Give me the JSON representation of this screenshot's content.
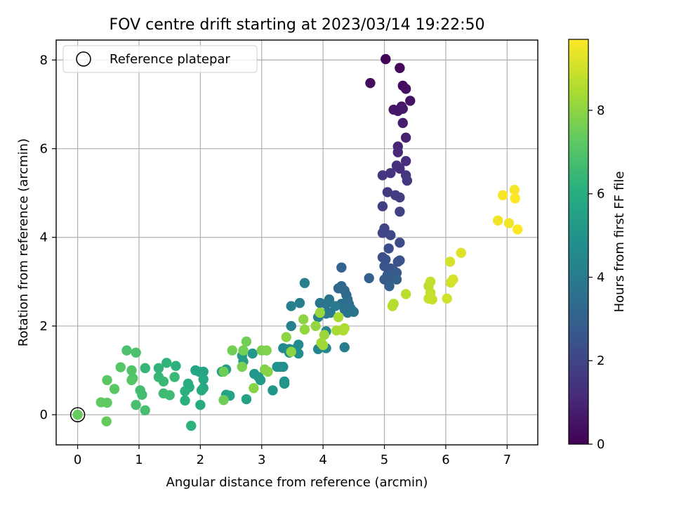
{
  "chart_data": {
    "type": "scatter",
    "title": "FOV centre drift starting at 2023/03/14 19:22:50",
    "xlabel": "Angular distance from reference (arcmin)",
    "ylabel": "Rotation from reference (arcmin)",
    "xlim": [
      -0.35,
      7.5
    ],
    "ylim": [
      -0.68,
      8.45
    ],
    "xticks": [
      0,
      1,
      2,
      3,
      4,
      5,
      6,
      7
    ],
    "yticks": [
      0,
      2,
      4,
      6,
      8
    ],
    "grid": true,
    "legend": {
      "placement": "top-left",
      "entries": [
        "Reference platepar"
      ]
    },
    "reference_point": {
      "x": 0,
      "y": 0,
      "label": "Reference platepar"
    },
    "colorbar": {
      "label": "Hours from first FF file",
      "colormap": "viridis",
      "range": [
        0,
        9.7
      ],
      "ticks": [
        0,
        2,
        4,
        6,
        8
      ]
    },
    "points": [
      [
        5.02,
        8.02,
        0.1
      ],
      [
        5.25,
        7.82,
        0.2
      ],
      [
        4.77,
        7.48,
        0.3
      ],
      [
        5.3,
        7.42,
        0.3
      ],
      [
        5.35,
        7.35,
        0.4
      ],
      [
        5.42,
        7.08,
        0.5
      ],
      [
        5.28,
        6.95,
        0.5
      ],
      [
        5.15,
        6.88,
        0.6
      ],
      [
        5.22,
        6.85,
        0.6
      ],
      [
        5.3,
        6.9,
        0.7
      ],
      [
        5.3,
        6.58,
        0.8
      ],
      [
        5.35,
        6.25,
        0.9
      ],
      [
        5.22,
        6.05,
        1.0
      ],
      [
        5.22,
        5.92,
        1.1
      ],
      [
        5.35,
        5.72,
        1.2
      ],
      [
        5.2,
        5.62,
        1.3
      ],
      [
        5.25,
        5.55,
        1.3
      ],
      [
        5.1,
        5.45,
        1.4
      ],
      [
        4.97,
        5.4,
        1.5
      ],
      [
        5.35,
        5.4,
        1.5
      ],
      [
        5.37,
        5.28,
        1.6
      ],
      [
        5.05,
        5.02,
        1.6
      ],
      [
        5.18,
        4.95,
        1.7
      ],
      [
        5.25,
        4.9,
        1.7
      ],
      [
        4.97,
        4.7,
        1.8
      ],
      [
        5.25,
        4.58,
        1.9
      ],
      [
        5.0,
        4.2,
        2.0
      ],
      [
        4.97,
        4.1,
        2.0
      ],
      [
        5.1,
        4.05,
        2.1
      ],
      [
        5.25,
        3.88,
        2.2
      ],
      [
        5.07,
        3.75,
        2.3
      ],
      [
        4.97,
        3.55,
        2.3
      ],
      [
        5.02,
        3.5,
        2.4
      ],
      [
        5.22,
        3.45,
        2.4
      ],
      [
        5.25,
        3.48,
        2.5
      ],
      [
        5.0,
        3.35,
        2.5
      ],
      [
        5.1,
        3.3,
        2.6
      ],
      [
        5.15,
        3.25,
        2.6
      ],
      [
        5.2,
        3.2,
        2.7
      ],
      [
        5.05,
        3.15,
        2.7
      ],
      [
        5.12,
        3.1,
        2.8
      ],
      [
        5.0,
        3.05,
        2.8
      ],
      [
        4.75,
        3.08,
        2.9
      ],
      [
        5.08,
        2.9,
        3.0
      ],
      [
        5.2,
        3.05,
        3.0
      ],
      [
        4.3,
        3.32,
        3.1
      ],
      [
        4.3,
        2.9,
        3.2
      ],
      [
        4.25,
        2.85,
        3.2
      ],
      [
        4.35,
        2.8,
        3.3
      ],
      [
        4.38,
        2.7,
        3.3
      ],
      [
        4.4,
        2.6,
        3.4
      ],
      [
        4.42,
        2.5,
        3.4
      ],
      [
        4.45,
        2.4,
        3.5
      ],
      [
        4.3,
        2.5,
        3.5
      ],
      [
        4.35,
        2.38,
        3.6
      ],
      [
        4.4,
        2.3,
        3.6
      ],
      [
        4.5,
        2.32,
        3.7
      ],
      [
        4.1,
        2.6,
        3.7
      ],
      [
        4.05,
        2.5,
        3.8
      ],
      [
        3.95,
        2.52,
        3.8
      ],
      [
        4.05,
        2.28,
        3.9
      ],
      [
        4.12,
        2.3,
        3.9
      ],
      [
        4.2,
        2.45,
        4.0
      ],
      [
        4.35,
        1.52,
        4.0
      ],
      [
        3.7,
        2.97,
        4.1
      ],
      [
        3.62,
        2.52,
        4.1
      ],
      [
        3.48,
        2.45,
        4.2
      ],
      [
        3.48,
        2.0,
        4.2
      ],
      [
        3.92,
        2.2,
        4.3
      ],
      [
        4.05,
        1.88,
        4.3
      ],
      [
        4.05,
        1.5,
        4.4
      ],
      [
        3.92,
        1.48,
        4.4
      ],
      [
        3.35,
        1.5,
        4.5
      ],
      [
        3.45,
        1.48,
        4.5
      ],
      [
        3.55,
        1.48,
        4.6
      ],
      [
        3.6,
        1.58,
        4.6
      ],
      [
        3.45,
        1.4,
        4.7
      ],
      [
        3.6,
        1.38,
        4.7
      ],
      [
        3.3,
        1.08,
        4.8
      ],
      [
        3.35,
        1.08,
        4.8
      ],
      [
        3.25,
        1.08,
        4.9
      ],
      [
        3.37,
        0.75,
        4.9
      ],
      [
        3.37,
        0.7,
        5.0
      ],
      [
        3.18,
        0.55,
        5.0
      ],
      [
        2.95,
        0.85,
        5.1
      ],
      [
        2.88,
        0.92,
        5.1
      ],
      [
        2.98,
        0.78,
        5.2
      ],
      [
        2.85,
        1.38,
        5.2
      ],
      [
        2.68,
        1.33,
        5.3
      ],
      [
        2.7,
        1.2,
        5.3
      ],
      [
        2.42,
        1.02,
        5.4
      ],
      [
        2.35,
        0.97,
        5.4
      ],
      [
        2.75,
        0.35,
        5.5
      ],
      [
        2.42,
        0.45,
        5.5
      ],
      [
        2.48,
        0.43,
        5.6
      ],
      [
        2.05,
        0.97,
        5.6
      ],
      [
        1.98,
        0.97,
        5.7
      ],
      [
        1.92,
        1.0,
        5.7
      ],
      [
        2.05,
        0.8,
        5.8
      ],
      [
        2.05,
        0.6,
        5.8
      ],
      [
        2.02,
        0.55,
        5.9
      ],
      [
        2.0,
        0.22,
        5.9
      ],
      [
        1.8,
        0.7,
        6.0
      ],
      [
        1.82,
        0.62,
        6.0
      ],
      [
        1.75,
        0.53,
        6.1
      ],
      [
        1.75,
        0.32,
        6.1
      ],
      [
        1.85,
        -0.25,
        6.2
      ],
      [
        1.6,
        1.1,
        6.2
      ],
      [
        1.45,
        1.17,
        6.3
      ],
      [
        1.32,
        1.05,
        6.3
      ],
      [
        1.1,
        1.05,
        6.4
      ],
      [
        1.32,
        0.85,
        6.4
      ],
      [
        1.4,
        0.75,
        6.5
      ],
      [
        1.58,
        0.85,
        6.5
      ],
      [
        1.4,
        0.48,
        6.6
      ],
      [
        1.5,
        0.44,
        6.6
      ],
      [
        1.02,
        0.55,
        6.7
      ],
      [
        1.05,
        0.45,
        6.7
      ],
      [
        0.95,
        0.22,
        6.8
      ],
      [
        1.1,
        0.1,
        6.8
      ],
      [
        0.95,
        1.4,
        6.9
      ],
      [
        0.8,
        1.45,
        6.9
      ],
      [
        0.88,
        1.0,
        7.0
      ],
      [
        0.9,
        0.82,
        7.0
      ],
      [
        0.88,
        0.78,
        7.1
      ],
      [
        0.7,
        1.07,
        7.1
      ],
      [
        0.6,
        0.58,
        7.2
      ],
      [
        0.48,
        0.78,
        7.2
      ],
      [
        0.38,
        0.28,
        7.3
      ],
      [
        0.48,
        0.27,
        7.3
      ],
      [
        0.47,
        -0.15,
        7.4
      ],
      [
        2.38,
        0.97,
        7.5
      ],
      [
        2.38,
        0.33,
        7.5
      ],
      [
        2.52,
        1.45,
        7.6
      ],
      [
        2.7,
        1.45,
        7.6
      ],
      [
        2.75,
        1.65,
        7.6
      ],
      [
        2.68,
        1.08,
        7.7
      ],
      [
        3.0,
        1.45,
        7.7
      ],
      [
        3.08,
        1.45,
        7.8
      ],
      [
        3.05,
        1.02,
        7.8
      ],
      [
        3.1,
        0.97,
        7.9
      ],
      [
        2.87,
        0.6,
        7.9
      ],
      [
        3.4,
        1.75,
        8.0
      ],
      [
        3.48,
        1.42,
        8.0
      ],
      [
        3.68,
        2.15,
        8.0
      ],
      [
        3.7,
        1.92,
        8.1
      ],
      [
        3.88,
        2.0,
        8.1
      ],
      [
        3.95,
        2.3,
        8.2
      ],
      [
        4.02,
        1.8,
        8.2
      ],
      [
        4.0,
        1.57,
        8.3
      ],
      [
        3.97,
        1.62,
        8.3
      ],
      [
        4.22,
        1.9,
        8.4
      ],
      [
        4.25,
        2.2,
        8.4
      ],
      [
        4.33,
        1.9,
        8.5
      ],
      [
        4.35,
        1.95,
        8.5
      ],
      [
        5.15,
        2.5,
        8.6
      ],
      [
        5.13,
        2.45,
        8.6
      ],
      [
        5.35,
        2.72,
        8.7
      ],
      [
        5.72,
        2.9,
        8.7
      ],
      [
        5.75,
        3.0,
        8.8
      ],
      [
        5.75,
        2.75,
        8.8
      ],
      [
        5.78,
        2.6,
        8.9
      ],
      [
        5.72,
        2.62,
        8.9
      ],
      [
        6.02,
        2.62,
        9.0
      ],
      [
        6.08,
        2.98,
        9.0
      ],
      [
        6.12,
        3.05,
        9.1
      ],
      [
        6.07,
        3.45,
        9.1
      ],
      [
        6.25,
        3.65,
        9.2
      ],
      [
        6.85,
        4.38,
        9.5
      ],
      [
        7.03,
        4.32,
        9.5
      ],
      [
        6.93,
        4.95,
        9.6
      ],
      [
        7.12,
        5.07,
        9.6
      ],
      [
        7.13,
        4.88,
        9.7
      ],
      [
        7.17,
        4.18,
        9.7
      ]
    ]
  }
}
